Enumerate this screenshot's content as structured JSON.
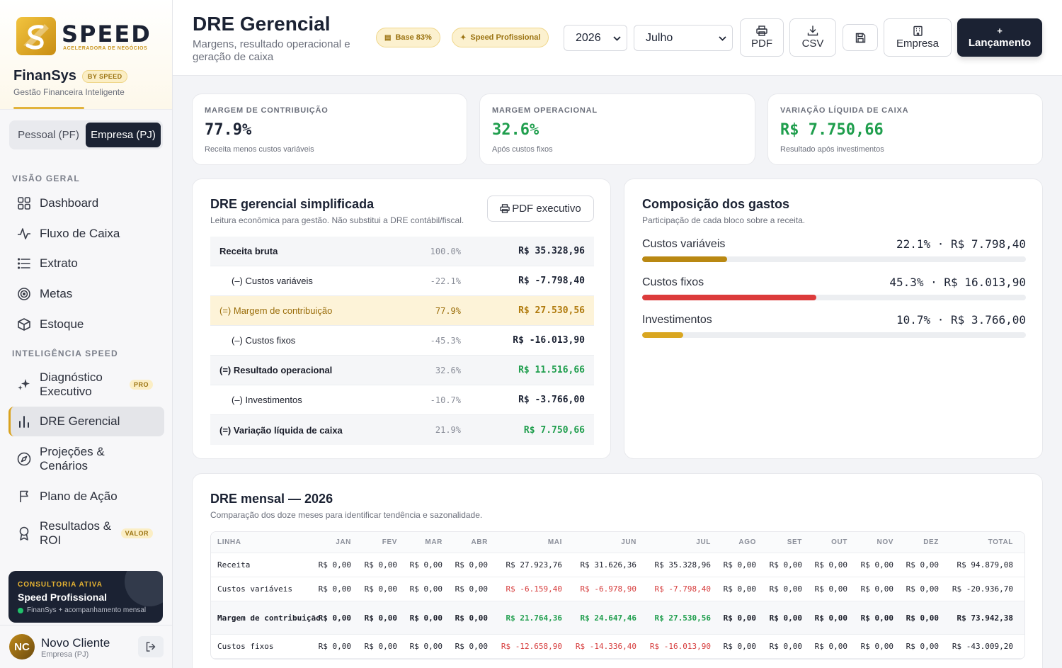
{
  "brand": {
    "logo_word": "SPEED",
    "logo_sub": "ACELERADORA DE NEGÓCIOS",
    "app_name": "FinanSys",
    "app_badge": "BY SPEED",
    "tagline": "Gestão Financeira Inteligente"
  },
  "mode_toggle": {
    "pf_label": "Pessoal (PF)",
    "pj_label": "Empresa (PJ)",
    "selected": "Empresa (PJ)"
  },
  "sidebar": {
    "section_overview": "VISÃO GERAL",
    "section_intel": "INTELIGÊNCIA SPEED",
    "items": [
      {
        "label": "Dashboard",
        "icon": "grid-icon"
      },
      {
        "label": "Fluxo de Caixa",
        "icon": "pulse-icon"
      },
      {
        "label": "Extrato",
        "icon": "list-icon"
      },
      {
        "label": "Metas",
        "icon": "target-icon"
      },
      {
        "label": "Estoque",
        "icon": "box-icon"
      },
      {
        "label": "Diagnóstico Executivo",
        "icon": "sparkles-icon",
        "tag": "PRO"
      },
      {
        "label": "DRE Gerencial",
        "icon": "bar-chart-icon",
        "active": true
      },
      {
        "label": "Projeções & Cenários",
        "icon": "compass-icon"
      },
      {
        "label": "Plano de Ação",
        "icon": "flag-icon"
      },
      {
        "label": "Resultados & ROI",
        "icon": "award-icon",
        "tag": "VALOR"
      }
    ],
    "consult": {
      "kicker": "CONSULTORIA ATIVA",
      "title": "Speed Profissional",
      "subtitle": "FinanSys + acompanhamento mensal"
    },
    "user": {
      "initials": "NC",
      "name": "Novo Cliente",
      "role": "Empresa (PJ)"
    }
  },
  "header": {
    "title": "DRE Gerencial",
    "subtitle": "Margens, resultado operacional e geração de caixa",
    "badge_base": "Base 83%",
    "badge_plan": "Speed Profissional",
    "year": "2026",
    "month": "Julho",
    "btn_pdf": "PDF",
    "btn_csv": "CSV",
    "btn_empresa": "Empresa",
    "btn_lancamento_plus": "+",
    "btn_lancamento": "Lançamento"
  },
  "kpis": [
    {
      "label": "MARGEM DE CONTRIBUIÇÃO",
      "value": "77.9%",
      "sub": "Receita menos custos variáveis",
      "color": "#1b2233"
    },
    {
      "label": "MARGEM OPERACIONAL",
      "value": "32.6%",
      "sub": "Após custos fixos",
      "color": "#1f9e4d"
    },
    {
      "label": "VARIAÇÃO LÍQUIDA DE CAIXA",
      "value": "R$ 7.750,66",
      "sub": "Resultado após investimentos",
      "color": "#1f9e4d"
    }
  ],
  "dre": {
    "title": "DRE gerencial simplificada",
    "subtitle": "Leitura econômica para gestão. Não substitui a DRE contábil/fiscal.",
    "pdf_button": "PDF executivo",
    "rows": [
      {
        "label": "Receita bruta",
        "pct": "100.0%",
        "value": "R$ 35.328,96",
        "style": "shade bold",
        "tone": "dark"
      },
      {
        "label": "(–) Custos variáveis",
        "pct": "-22.1%",
        "value": "R$ -7.798,40",
        "style": "ind",
        "tone": "dark"
      },
      {
        "label": "(=) Margem de contribuição",
        "pct": "77.9%",
        "value": "R$ 27.530,56",
        "style": "hl",
        "tone": "gold"
      },
      {
        "label": "(–) Custos fixos",
        "pct": "-45.3%",
        "value": "R$ -16.013,90",
        "style": "ind",
        "tone": "dark"
      },
      {
        "label": "(=) Resultado operacional",
        "pct": "32.6%",
        "value": "R$ 11.516,66",
        "style": "shade bold",
        "tone": "green"
      },
      {
        "label": "(–) Investimentos",
        "pct": "-10.7%",
        "value": "R$ -3.766,00",
        "style": "ind",
        "tone": "dark"
      },
      {
        "label": "(=) Variação líquida de caixa",
        "pct": "21.9%",
        "value": "R$ 7.750,66",
        "style": "shade bold",
        "tone": "green"
      }
    ]
  },
  "composition": {
    "title": "Composição dos gastos",
    "subtitle": "Participação de cada bloco sobre a receita.",
    "items": [
      {
        "label": "Custos variáveis",
        "value": "22.1% · R$ 7.798,40",
        "share": 22.1,
        "color": "#b98812"
      },
      {
        "label": "Custos fixos",
        "value": "45.3% · R$ 16.013,90",
        "share": 45.3,
        "color": "#dc3b3b"
      },
      {
        "label": "Investimentos",
        "value": "10.7% · R$ 3.766,00",
        "share": 10.7,
        "color": "#d9a620"
      }
    ]
  },
  "monthly": {
    "title": "DRE mensal — 2026",
    "subtitle": "Comparação dos doze meses para identificar tendência e sazonalidade.",
    "headers": [
      "LINHA",
      "JAN",
      "FEV",
      "MAR",
      "ABR",
      "MAI",
      "JUN",
      "JUL",
      "AGO",
      "SET",
      "OUT",
      "NOV",
      "DEZ",
      "TOTAL"
    ],
    "rows": [
      {
        "label": "Receita",
        "kind": "normal",
        "cells": [
          "R$ 0,00",
          "R$ 0,00",
          "R$ 0,00",
          "R$ 0,00",
          "R$ 27.923,76",
          "R$ 31.626,36",
          "R$ 35.328,96",
          "R$ 0,00",
          "R$ 0,00",
          "R$ 0,00",
          "R$ 0,00",
          "R$ 0,00",
          "R$ 94.879,08"
        ],
        "tone": [
          "",
          "",
          "",
          "",
          "",
          "",
          "",
          "",
          "",
          "",
          "",
          "",
          ""
        ]
      },
      {
        "label": "Custos variáveis",
        "kind": "normal",
        "cells": [
          "R$ 0,00",
          "R$ 0,00",
          "R$ 0,00",
          "R$ 0,00",
          "R$ -6.159,40",
          "R$ -6.978,90",
          "R$ -7.798,40",
          "R$ 0,00",
          "R$ 0,00",
          "R$ 0,00",
          "R$ 0,00",
          "R$ 0,00",
          "R$ -20.936,70"
        ],
        "tone": [
          "",
          "",
          "",
          "",
          "neg",
          "neg",
          "neg",
          "",
          "",
          "",
          "",
          "",
          ""
        ]
      },
      {
        "label": "Margem de contribuição",
        "kind": "tall",
        "cells": [
          "R$ 0,00",
          "R$ 0,00",
          "R$ 0,00",
          "R$ 0,00",
          "R$ 21.764,36",
          "R$ 24.647,46",
          "R$ 27.530,56",
          "R$ 0,00",
          "R$ 0,00",
          "R$ 0,00",
          "R$ 0,00",
          "R$ 0,00",
          "R$ 73.942,38"
        ],
        "tone": [
          "",
          "",
          "",
          "",
          "pos",
          "pos",
          "pos",
          "",
          "",
          "",
          "",
          "",
          ""
        ]
      },
      {
        "label": "Custos fixos",
        "kind": "normal",
        "cells": [
          "R$ 0,00",
          "R$ 0,00",
          "R$ 0,00",
          "R$ 0,00",
          "R$ -12.658,90",
          "R$ -14.336,40",
          "R$ -16.013,90",
          "R$ 0,00",
          "R$ 0,00",
          "R$ 0,00",
          "R$ 0,00",
          "R$ 0,00",
          "R$ -43.009,20"
        ],
        "tone": [
          "",
          "",
          "",
          "",
          "neg",
          "neg",
          "neg",
          "",
          "",
          "",
          "",
          "",
          ""
        ]
      }
    ]
  }
}
